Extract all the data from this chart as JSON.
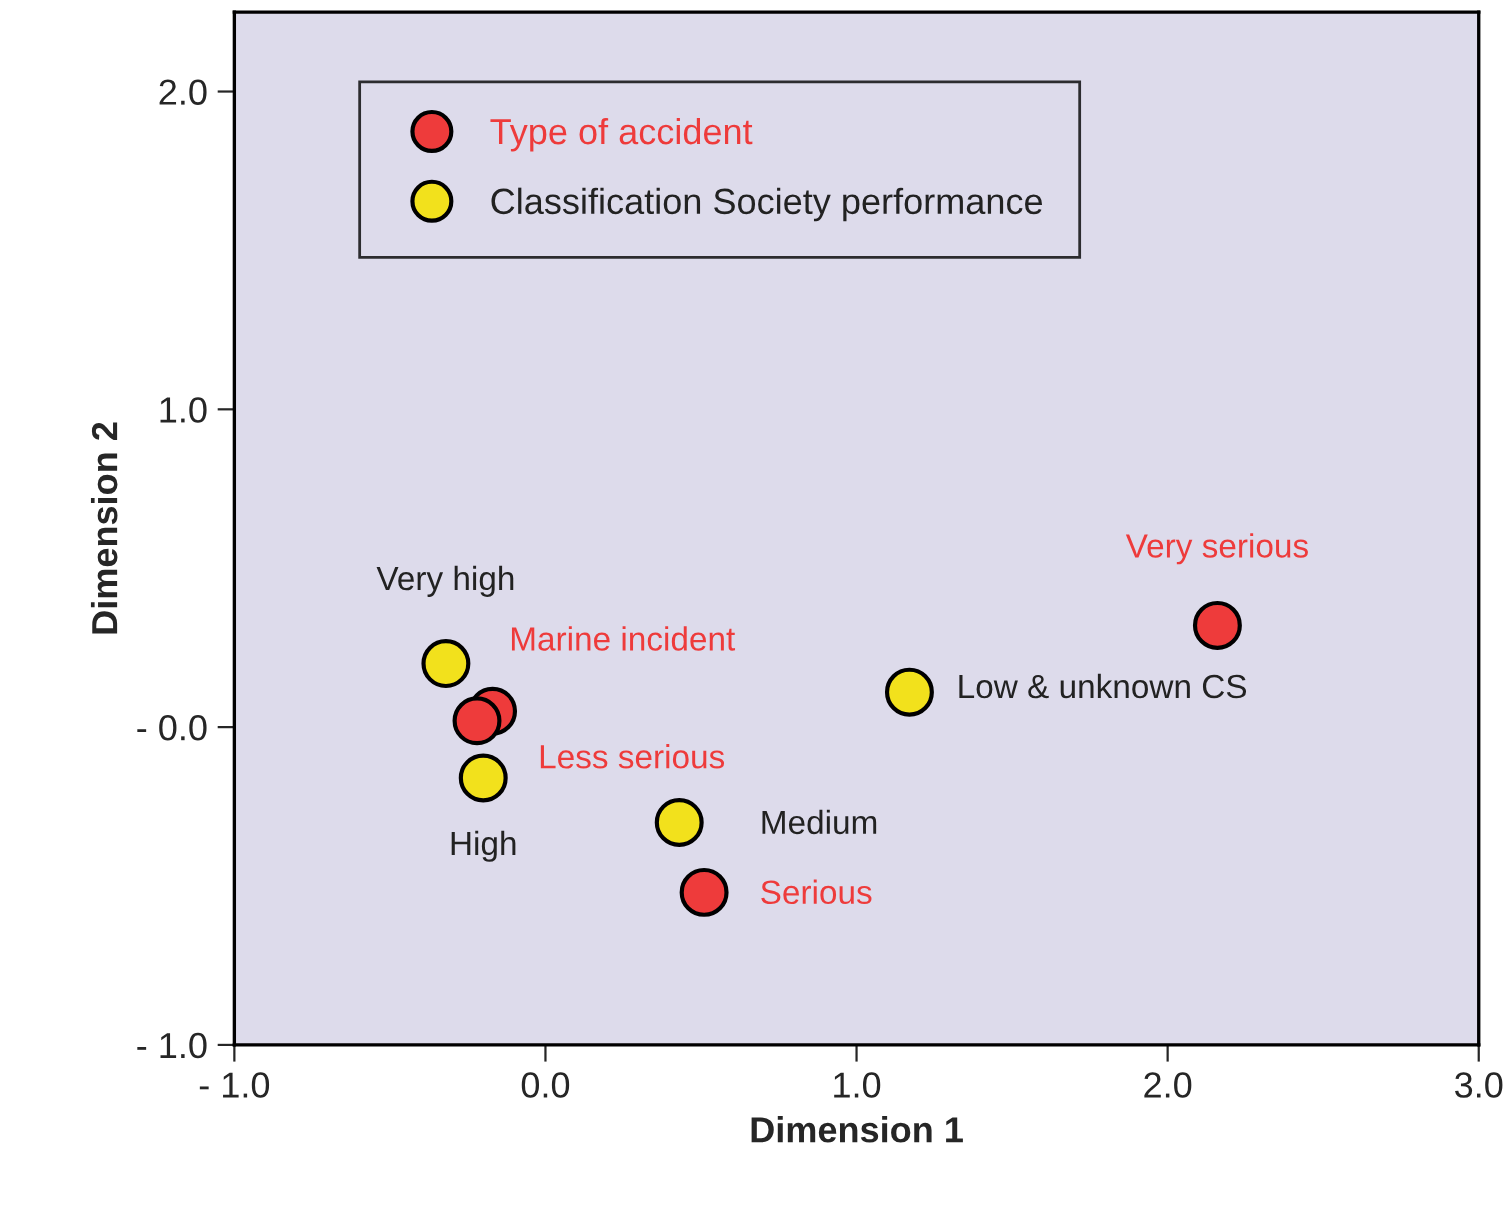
{
  "chart_data": {
    "type": "scatter",
    "xlabel": "Dimension 1",
    "ylabel": "Dimension 2",
    "xlim": [
      -1.0,
      3.0
    ],
    "ylim": [
      -1.0,
      2.25
    ],
    "xticks": [
      {
        "value": -1.0,
        "label": "- 1.0"
      },
      {
        "value": 0.0,
        "label": "0.0"
      },
      {
        "value": 1.0,
        "label": "1.0"
      },
      {
        "value": 2.0,
        "label": "2.0"
      },
      {
        "value": 3.0,
        "label": "3.0"
      }
    ],
    "yticks": [
      {
        "value": -1.0,
        "label": "- 1.0"
      },
      {
        "value": 0.0,
        "label": "- 0.0"
      },
      {
        "value": 1.0,
        "label": "1.0"
      },
      {
        "value": 2.0,
        "label": "2.0"
      }
    ],
    "grid": false,
    "legend": "top",
    "marker": "circle",
    "series": [
      {
        "name": "Type of accident",
        "color": "#ee3b3b",
        "x": [
          2.16,
          -0.17,
          -0.22,
          0.51
        ],
        "values": [
          0.32,
          0.05,
          0.02,
          -0.52
        ],
        "value_labels": [
          "Very serious",
          "Marine incident",
          "Less serious",
          "Serious"
        ]
      },
      {
        "name": "Classification Society performance",
        "color": "#f2e11c",
        "x": [
          -0.32,
          1.17,
          0.43,
          -0.2
        ],
        "values": [
          0.2,
          0.11,
          -0.3,
          -0.16
        ],
        "value_labels": [
          "Very high",
          "Low & unknown CS",
          "Medium",
          "High"
        ]
      }
    ]
  }
}
